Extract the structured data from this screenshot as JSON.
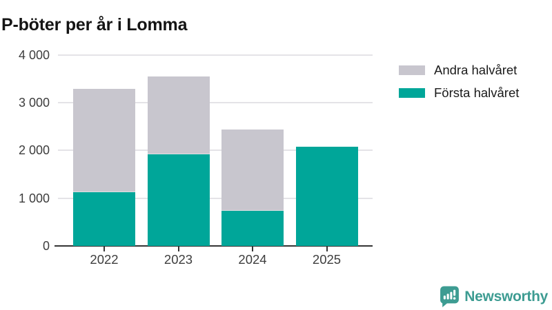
{
  "title": "P-böter per år i Lomma",
  "legend": [
    {
      "label": "Andra halvåret",
      "color": "#c8c6ce"
    },
    {
      "label": "Första halvåret",
      "color": "#00a699"
    }
  ],
  "chart_data": {
    "type": "bar",
    "stacked": true,
    "title": "P-böter per år i Lomma",
    "categories": [
      "2022",
      "2023",
      "2024",
      "2025"
    ],
    "series": [
      {
        "name": "Första halvåret",
        "color": "#00a699",
        "values": [
          1130,
          1920,
          730,
          2070
        ]
      },
      {
        "name": "Andra halvåret",
        "color": "#c8c6ce",
        "values": [
          2160,
          1630,
          1700,
          0
        ]
      }
    ],
    "totals": [
      3290,
      3550,
      2430,
      2070
    ],
    "xlabel": "",
    "ylabel": "",
    "ylim": [
      0,
      4000
    ],
    "yticks": [
      {
        "value": 0,
        "label": "0"
      },
      {
        "value": 1000,
        "label": "1 000"
      },
      {
        "value": 2000,
        "label": "2 000"
      },
      {
        "value": 3000,
        "label": "3 000"
      },
      {
        "value": 4000,
        "label": "4 000"
      }
    ],
    "grid": "horizontal",
    "legend_position": "right"
  },
  "branding": {
    "logo_text": "Newsworthy",
    "logo_color": "#3d9c92",
    "logo_icon": "newsworthy-chart-bubble-icon"
  }
}
